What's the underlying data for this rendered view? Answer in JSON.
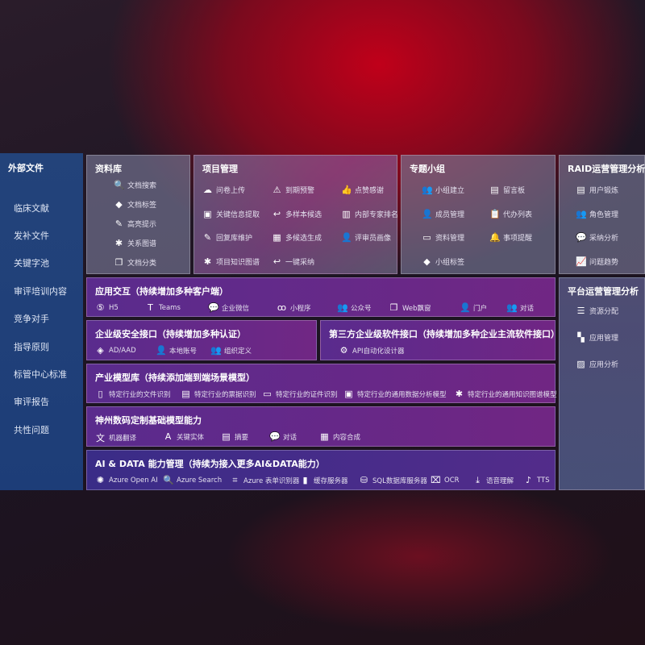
{
  "sidebar": {
    "title": "外部文件",
    "items": [
      "临床文献",
      "发补文件",
      "关键字池",
      "审评培训内容",
      "竞争对手",
      "指导原则",
      "标管中心标准",
      "审评报告",
      "共性问题"
    ]
  },
  "library": {
    "title": "资料库",
    "items": [
      {
        "icon": "document-search-icon",
        "glyph": "🔍",
        "label": "文档搜索"
      },
      {
        "icon": "tag-icon",
        "glyph": "◆",
        "label": "文档标签"
      },
      {
        "icon": "pen-icon",
        "glyph": "✎",
        "label": "高亮提示"
      },
      {
        "icon": "graph-icon",
        "glyph": "✱",
        "label": "关系图谱"
      },
      {
        "icon": "copy-icon",
        "glyph": "❐",
        "label": "文档分类"
      }
    ]
  },
  "project": {
    "title": "项目管理",
    "items": [
      {
        "icon": "cloud-upload-icon",
        "glyph": "☁",
        "label": "问卷上传"
      },
      {
        "icon": "alarm-icon",
        "glyph": "⚠",
        "label": "到期预警"
      },
      {
        "icon": "thumbs-up-icon",
        "glyph": "👍",
        "label": "点赞感谢"
      },
      {
        "icon": "window-icon",
        "glyph": "▣",
        "label": "关键信息提取"
      },
      {
        "icon": "reply-icon",
        "glyph": "↩",
        "label": "多样本候选"
      },
      {
        "icon": "ranking-icon",
        "glyph": "▥",
        "label": "内部专家排名"
      },
      {
        "icon": "pen-icon",
        "glyph": "✎",
        "label": "回复库维护"
      },
      {
        "icon": "puzzle-icon",
        "glyph": "▦",
        "label": "多候选生成"
      },
      {
        "icon": "user-icon",
        "glyph": "👤",
        "label": "评审员画像"
      },
      {
        "icon": "graph-icon",
        "glyph": "✱",
        "label": "项目知识图谱"
      },
      {
        "icon": "reply-icon",
        "glyph": "↩",
        "label": "一键采纳"
      }
    ]
  },
  "group": {
    "title": "专题小组",
    "items": [
      {
        "icon": "users-icon",
        "glyph": "👥",
        "label": "小组建立"
      },
      {
        "icon": "bbs-icon",
        "glyph": "▤",
        "label": "留言板"
      },
      {
        "icon": "user-add-icon",
        "glyph": "👤",
        "label": "成员管理"
      },
      {
        "icon": "clipboard-icon",
        "glyph": "📋",
        "label": "代办列表"
      },
      {
        "icon": "folder-icon",
        "glyph": "▭",
        "label": "资料管理"
      },
      {
        "icon": "bell-icon",
        "glyph": "🔔",
        "label": "事项提醒"
      },
      {
        "icon": "tag-icon",
        "glyph": "◆",
        "label": "小组标签"
      }
    ]
  },
  "raid": {
    "title": "RAID运营管理分析",
    "items": [
      {
        "icon": "id-card-icon",
        "glyph": "▤",
        "label": "用户锻炼"
      },
      {
        "icon": "users-icon",
        "glyph": "👥",
        "label": "角色管理"
      },
      {
        "icon": "qa-icon",
        "glyph": "💬",
        "label": "采纳分析"
      },
      {
        "icon": "trend-icon",
        "glyph": "📈",
        "label": "问题趋势"
      }
    ]
  },
  "platform": {
    "title": "平台运营管理分析",
    "items": [
      {
        "icon": "list-icon",
        "glyph": "☰",
        "label": "资源分配"
      },
      {
        "icon": "apps-icon",
        "glyph": "▚",
        "label": "应用管理"
      },
      {
        "icon": "chart-icon",
        "glyph": "▨",
        "label": "应用分析"
      }
    ]
  },
  "app_interaction": {
    "title": "应用交互（持续增加多种客户端）",
    "items": [
      {
        "icon": "html5-icon",
        "glyph": "⑤",
        "label": "H5"
      },
      {
        "icon": "teams-icon",
        "glyph": "T",
        "label": "Teams"
      },
      {
        "icon": "wechat-icon",
        "glyph": "💬",
        "label": "企业微信"
      },
      {
        "icon": "miniprogram-icon",
        "glyph": "ꝏ",
        "label": "小程序"
      },
      {
        "icon": "users-icon",
        "glyph": "👥",
        "label": "公众号"
      },
      {
        "icon": "window-icon",
        "glyph": "❐",
        "label": "Web飘窗"
      },
      {
        "icon": "portal-icon",
        "glyph": "👤",
        "label": "门户"
      },
      {
        "icon": "dialog-icon",
        "glyph": "👥",
        "label": "对话"
      }
    ]
  },
  "security": {
    "title": "企业级安全接口（持续增加多种认证）",
    "items": [
      {
        "icon": "aad-icon",
        "glyph": "◈",
        "label": "AD/AAD"
      },
      {
        "icon": "local-account-icon",
        "glyph": "👤",
        "label": "本地账号"
      },
      {
        "icon": "org-icon",
        "glyph": "👥",
        "label": "组织定义"
      }
    ]
  },
  "third_party": {
    "title": "第三方企业级软件接口（持续增加多种企业主流软件接口）",
    "items": [
      {
        "icon": "gear-icon",
        "glyph": "⚙",
        "label": "API自动化设计器"
      }
    ]
  },
  "industry": {
    "title": "产业模型库（持续添加端到端场景模型）",
    "items": [
      {
        "icon": "file-icon",
        "glyph": "▯",
        "label": "特定行业的文件识别"
      },
      {
        "icon": "receipt-icon",
        "glyph": "▤",
        "label": "特定行业的票据识别"
      },
      {
        "icon": "id-card-icon",
        "glyph": "▭",
        "label": "特定行业的证件识别"
      },
      {
        "icon": "data-analysis-icon",
        "glyph": "▣",
        "label": "特定行业的通用数据分析模型"
      },
      {
        "icon": "graph-icon",
        "glyph": "✱",
        "label": "特定行业的通用知识图谱模型"
      }
    ]
  },
  "base_model": {
    "title": "神州数码定制基础模型能力",
    "items": [
      {
        "icon": "translate-icon",
        "glyph": "文",
        "label": "机器翻译"
      },
      {
        "icon": "entity-icon",
        "glyph": "A",
        "label": "关键实体"
      },
      {
        "icon": "summary-icon",
        "glyph": "▤",
        "label": "摘要"
      },
      {
        "icon": "chat-icon",
        "glyph": "💬",
        "label": "对话"
      },
      {
        "icon": "compose-icon",
        "glyph": "▦",
        "label": "内容合成"
      }
    ]
  },
  "ai_data": {
    "title": "AI & DATA 能力管理（持续为接入更多AI&DATA能力）",
    "items": [
      {
        "icon": "openai-icon",
        "glyph": "✺",
        "label": "Azure Open AI"
      },
      {
        "icon": "search-icon",
        "glyph": "🔍",
        "label": "Azure Search"
      },
      {
        "icon": "form-recognizer-icon",
        "glyph": "⌗",
        "label": "Azure 表单识别器"
      },
      {
        "icon": "cache-server-icon",
        "glyph": "▮",
        "label": "缓存服务器"
      },
      {
        "icon": "database-icon",
        "glyph": "⛁",
        "label": "SQL数据库服务器"
      },
      {
        "icon": "ocr-icon",
        "glyph": "⌧",
        "label": "OCR"
      },
      {
        "icon": "speech-icon",
        "glyph": "⤓",
        "label": "语音理解"
      },
      {
        "icon": "tts-icon",
        "glyph": "♪",
        "label": "TTS"
      }
    ]
  }
}
